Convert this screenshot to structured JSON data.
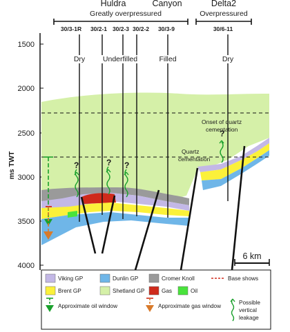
{
  "header": {
    "fields": [
      {
        "name": "Huldra"
      },
      {
        "name": "Canyon"
      },
      {
        "name": "Delta2"
      }
    ],
    "group_left": "Greatly overpressured",
    "group_right": "Overpressured",
    "wells": [
      "30/3-1R",
      "30/2-1",
      "30/2-3",
      "30/2-2",
      "30/3-9",
      "30/6-11"
    ],
    "well_labels": {
      "w1": "Dry",
      "w2": "Underfilled",
      "w3": "Filled",
      "w4": "Dry"
    }
  },
  "axis": {
    "title": "ms TWT",
    "ticks": [
      "1500",
      "2000",
      "2500",
      "3000",
      "3500",
      "4000"
    ]
  },
  "annotations": {
    "onset_line1": "Onset of quartz",
    "onset_line2": "cementation",
    "quartz_line1": "Quartz",
    "quartz_line2": "cementation",
    "question": "?",
    "scale": "6 km"
  },
  "legend": {
    "viking": "Viking GP",
    "dunlin": "Dunlin GP",
    "cromer": "Cromer Knoll",
    "base_shows": "Base shows",
    "brent": "Brent GP",
    "shetland": "Shetland GP",
    "gas": "Gas",
    "oil": "Oil",
    "oil_window": "Approximate oil window",
    "gas_window": "Approximate gas window",
    "leak1": "Possible",
    "leak2": "vertical",
    "leak3": "leakage"
  },
  "colors": {
    "shetland": "#d5f0a8",
    "viking": "#c3b8e6",
    "brent": "#fbf13a",
    "dunlin": "#6fb6e8",
    "cromer": "#9a9a9a",
    "gas": "#cf2a1b",
    "oil": "#49e33c",
    "leakage": "#1aa02c"
  }
}
